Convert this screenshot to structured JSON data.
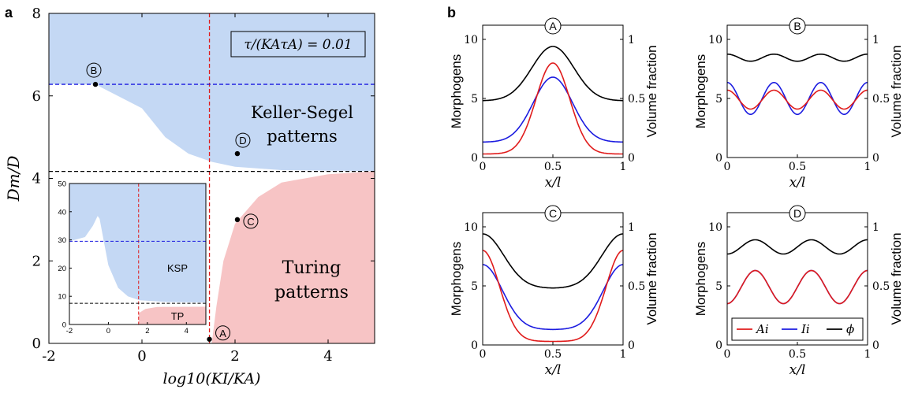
{
  "panel_labels": {
    "a": "a",
    "b": "b"
  },
  "colors": {
    "blue_fill": "#c4d8f4",
    "red_fill": "#f7c4c5",
    "red": "#e01b1b",
    "blue": "#1c1ce0",
    "black": "#000000"
  },
  "phase": {
    "xlabel": "log10(KI/KA)",
    "ylabel": "Dm/D",
    "box_text": "τ/(KAτA) = 0.01",
    "region_ksp": [
      "Keller-Segel",
      "patterns"
    ],
    "region_tp": [
      "Turing",
      "patterns"
    ],
    "xticks": [
      "-2",
      "0",
      "2",
      "4"
    ],
    "yticks": [
      "0",
      "2",
      "4",
      "6",
      "8"
    ],
    "xlim": [
      -2,
      5
    ],
    "ylim": [
      0,
      8
    ],
    "vline_x": 1.45,
    "hline_blue": 6.28,
    "hline_black": 4.17,
    "points": [
      {
        "label": "A",
        "x": 1.45,
        "y": 0.1
      },
      {
        "label": "B",
        "x": -1.0,
        "y": 6.28
      },
      {
        "label": "C",
        "x": 2.05,
        "y": 3.0
      },
      {
        "label": "D",
        "x": 2.05,
        "y": 4.6
      }
    ],
    "ksp_boundary": [
      [
        -2,
        6.28
      ],
      [
        -1,
        6.28
      ],
      [
        0,
        5.7
      ],
      [
        0.5,
        5.0
      ],
      [
        1,
        4.6
      ],
      [
        1.5,
        4.4
      ],
      [
        2,
        4.28
      ],
      [
        3,
        4.2
      ],
      [
        5,
        4.18
      ]
    ],
    "tp_boundary": [
      [
        1.5,
        0
      ],
      [
        1.6,
        0.9
      ],
      [
        1.75,
        2.0
      ],
      [
        2,
        2.9
      ],
      [
        2.5,
        3.55
      ],
      [
        3,
        3.9
      ],
      [
        4,
        4.1
      ],
      [
        5,
        4.17
      ]
    ]
  },
  "inset": {
    "label_ksp": "KSP",
    "label_tp": "TP",
    "xticks": [
      "-2",
      "0",
      "2",
      "4"
    ],
    "yticks": [
      "0",
      "10",
      "20",
      "30",
      "40",
      "50"
    ],
    "xlim": [
      -2,
      5
    ],
    "ylim": [
      0,
      50
    ],
    "vline_x": 1.55,
    "hline_blue": 29.5,
    "hline_black": 7.5
  },
  "panels": [
    {
      "id": "A",
      "label": "A",
      "curves": {
        "A": {
          "base": 0.3,
          "amp": 7.7,
          "shape": "gauss",
          "w": 0.12
        },
        "I": {
          "base": 1.3,
          "amp": 5.5,
          "shape": "gauss",
          "w": 0.14
        },
        "phi": {
          "base": 4.8,
          "amp": 4.6,
          "shape": "gauss",
          "w": 0.15
        }
      }
    },
    {
      "id": "B",
      "label": "B",
      "curves": {
        "A": {
          "mid": 4.9,
          "amp": 0.8,
          "shape": "cos3"
        },
        "I": {
          "mid": 5.0,
          "amp": 1.35,
          "shape": "cos3"
        },
        "phi": {
          "mid": 8.45,
          "amp": 0.3,
          "shape": "cos3"
        }
      }
    },
    {
      "id": "C",
      "label": "C",
      "curves": {
        "A": {
          "base": 0.3,
          "amp": 7.7,
          "shape": "invgauss",
          "w": 0.12
        },
        "I": {
          "base": 1.3,
          "amp": 5.5,
          "shape": "invgauss",
          "w": 0.14
        },
        "phi": {
          "base": 4.8,
          "amp": 4.6,
          "shape": "invgauss",
          "w": 0.15
        }
      }
    },
    {
      "id": "D",
      "label": "D",
      "curves": {
        "A": {
          "mid": 4.9,
          "amp": 1.4,
          "shape": "cos25"
        },
        "I": {
          "mid": 4.9,
          "amp": 1.4,
          "shape": "cos25"
        },
        "phi": {
          "mid": 8.3,
          "amp": 0.6,
          "shape": "cos25"
        }
      }
    }
  ],
  "small_axes": {
    "left_label": "Morphogens",
    "right_label": "Volume fraction",
    "xlabel": "x/l",
    "left_ticks": [
      "0",
      "5",
      "10"
    ],
    "right_ticks": [
      "0",
      "0.5",
      "1"
    ],
    "x_ticks": [
      "0",
      "0.5",
      "1"
    ],
    "left_lim": [
      0,
      11.2
    ]
  },
  "legend": [
    {
      "key": "A",
      "label": "Ai",
      "color": "#e01b1b"
    },
    {
      "key": "I",
      "label": "Ii",
      "color": "#1c1ce0"
    },
    {
      "key": "phi",
      "label": "ϕ",
      "color": "#000000"
    }
  ]
}
